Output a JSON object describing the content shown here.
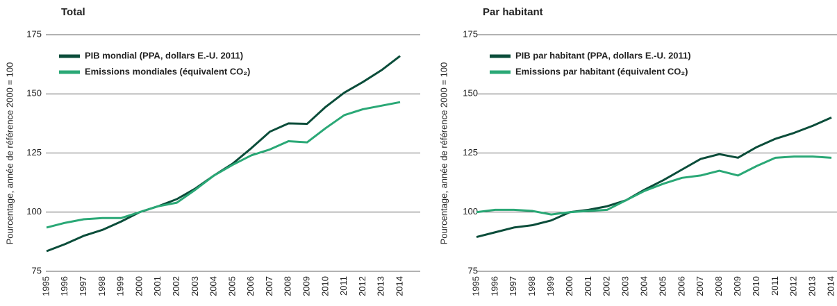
{
  "chart_data": [
    {
      "type": "line",
      "title": "Total",
      "ylabel": "Pourcentage, année de référence 2000 = 100",
      "x": [
        1995,
        1996,
        1997,
        1998,
        1999,
        2000,
        2001,
        2002,
        2003,
        2004,
        2005,
        2006,
        2007,
        2008,
        2009,
        2010,
        2011,
        2012,
        2013,
        2014
      ],
      "xlim": [
        1995,
        2014
      ],
      "ylim": [
        75,
        175
      ],
      "yticks": [
        75,
        100,
        125,
        150,
        175
      ],
      "grid": true,
      "legend": "upper left",
      "series": [
        {
          "name": "PIB mondial (PPA, dollars E.-U. 2011)",
          "color": "#0b4d3a",
          "values": [
            83.5,
            86.5,
            90,
            92.5,
            96,
            100,
            102.5,
            105.5,
            110,
            115.5,
            120.5,
            127,
            134,
            137.5,
            137.3,
            144.5,
            150.5,
            155,
            160,
            166
          ]
        },
        {
          "name": "Emissions mondiales (équivalent CO₂)",
          "color": "#2aa876",
          "values": [
            93.5,
            95.5,
            97,
            97.5,
            97.5,
            100,
            102.5,
            104,
            109.5,
            115.5,
            120,
            124,
            126.5,
            130,
            129.5,
            135.5,
            141,
            143.5,
            145,
            146.5
          ]
        }
      ]
    },
    {
      "type": "line",
      "title": "Par habitant",
      "ylabel": "Pourcentage, année de référence 2000 = 100",
      "x": [
        1995,
        1996,
        1997,
        1998,
        1999,
        2000,
        2001,
        2002,
        2003,
        2004,
        2005,
        2006,
        2007,
        2008,
        2009,
        2010,
        2011,
        2012,
        2013,
        2014
      ],
      "xlim": [
        1995,
        2014
      ],
      "ylim": [
        75,
        175
      ],
      "yticks": [
        75,
        100,
        125,
        150,
        175
      ],
      "grid": true,
      "legend": "upper left",
      "series": [
        {
          "name": "PIB par habitant (PPA, dollars E.-U. 2011)",
          "color": "#0b4d3a",
          "values": [
            89.5,
            91.5,
            93.5,
            94.5,
            96.5,
            100,
            101,
            102.5,
            105,
            109.5,
            113.5,
            118,
            122.5,
            124.5,
            123,
            127.5,
            131,
            133.5,
            136.5,
            140
          ]
        },
        {
          "name": "Emissions par habitant (équivalent CO₂)",
          "color": "#2aa876",
          "values": [
            100,
            101,
            101,
            100.5,
            99,
            100,
            100.5,
            101,
            105,
            109,
            112,
            114.5,
            115.5,
            117.5,
            115.5,
            119.5,
            123,
            123.5,
            123.5,
            123
          ]
        }
      ]
    }
  ]
}
